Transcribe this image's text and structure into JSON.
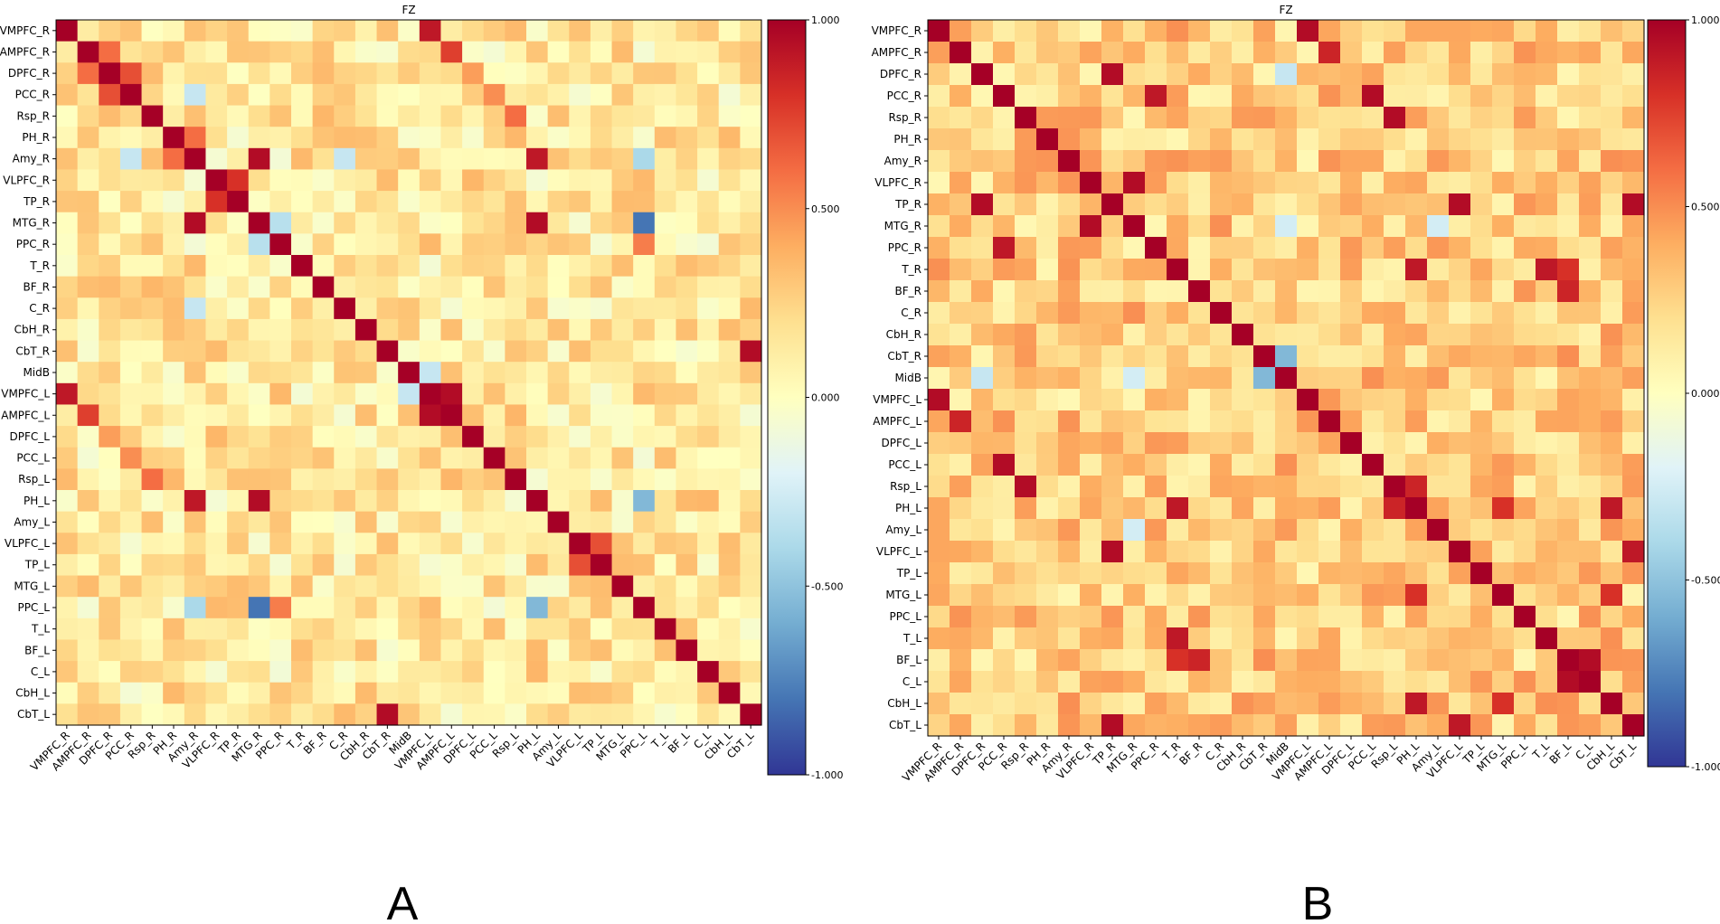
{
  "figure": {
    "panel_letters": [
      "A",
      "B"
    ]
  },
  "colormap": {
    "name": "RdYlBu_r",
    "stops": [
      "#313695",
      "#4575b4",
      "#74add1",
      "#abd9e9",
      "#e0f3f8",
      "#ffffbf",
      "#fee090",
      "#fdae61",
      "#f46d43",
      "#d73027",
      "#a50026"
    ]
  },
  "chart_data": [
    {
      "type": "heatmap",
      "panel": "A",
      "title": "FZ",
      "xlabel": "",
      "ylabel": "",
      "vmin": -1.0,
      "vmax": 1.0,
      "colorbar_ticks": [
        1.0,
        0.5,
        0.0,
        -0.5,
        -1.0
      ],
      "colorbar_tick_labels": [
        "1.000",
        "0.500",
        "0.000",
        "-0.500",
        "-1.000"
      ],
      "labels": [
        "VMPFC_R",
        "AMPFC_R",
        "DPFC_R",
        "PCC_R",
        "Rsp_R",
        "PH_R",
        "Amy_R",
        "VLPFC_R",
        "TP_R",
        "MTG_R",
        "PPC_R",
        "T_R",
        "BF_R",
        "C_R",
        "CbH_R",
        "CbT_R",
        "MidB",
        "VMPFC_L",
        "AMPFC_L",
        "DPFC_L",
        "PCC_L",
        "Rsp_L",
        "PH_L",
        "Amy_L",
        "VLPFC_L",
        "TP_L",
        "MTG_L",
        "PPC_L",
        "T_L",
        "BF_L",
        "C_L",
        "CbH_L",
        "CbT_L"
      ],
      "diagonal": 1.0,
      "base_level": 0.12,
      "notable_cells": [
        {
          "row": "VMPFC_R",
          "col": "VMPFC_L",
          "value": 0.9
        },
        {
          "row": "AMPFC_R",
          "col": "AMPFC_L",
          "value": 0.75
        },
        {
          "row": "AMPFC_R",
          "col": "DPFC_R",
          "value": 0.6
        },
        {
          "row": "DPFC_R",
          "col": "PCC_R",
          "value": 0.7
        },
        {
          "row": "DPFC_R",
          "col": "DPFC_L",
          "value": 0.45
        },
        {
          "row": "PCC_R",
          "col": "PCC_L",
          "value": 0.5
        },
        {
          "row": "Rsp_R",
          "col": "Rsp_L",
          "value": 0.6
        },
        {
          "row": "PH_R",
          "col": "Amy_R",
          "value": 0.6
        },
        {
          "row": "Amy_R",
          "col": "MTG_R",
          "value": 0.95
        },
        {
          "row": "Amy_R",
          "col": "PH_L",
          "value": 0.9
        },
        {
          "row": "MTG_R",
          "col": "PH_L",
          "value": 0.95
        },
        {
          "row": "VLPFC_R",
          "col": "TP_R",
          "value": 0.8
        },
        {
          "row": "PPC_R",
          "col": "PPC_L",
          "value": 0.55
        },
        {
          "row": "CbT_R",
          "col": "CbT_L",
          "value": 0.95
        },
        {
          "row": "VMPFC_L",
          "col": "AMPFC_L",
          "value": 0.95
        },
        {
          "row": "VLPFC_L",
          "col": "TP_L",
          "value": 0.7
        },
        {
          "row": "MTG_R",
          "col": "PPC_L",
          "value": -0.8
        },
        {
          "row": "Amy_R",
          "col": "PPC_L",
          "value": -0.4
        },
        {
          "row": "PH_L",
          "col": "PPC_L",
          "value": -0.55
        },
        {
          "row": "MTG_R",
          "col": "PPC_R",
          "value": -0.35
        },
        {
          "row": "Amy_R",
          "col": "PCC_R",
          "value": -0.3
        },
        {
          "row": "MidB",
          "col": "VMPFC_L",
          "value": -0.3
        },
        {
          "row": "Amy_R",
          "col": "C_R",
          "value": -0.3
        }
      ]
    },
    {
      "type": "heatmap",
      "panel": "B",
      "title": "FZ",
      "xlabel": "",
      "ylabel": "",
      "vmin": -1.0,
      "vmax": 1.0,
      "colorbar_ticks": [
        1.0,
        0.5,
        0.0,
        -0.5,
        -1.0
      ],
      "colorbar_tick_labels": [
        "1.000",
        "0.500",
        "0.000",
        "-0.500",
        "-1.000"
      ],
      "labels": [
        "VMPFC_R",
        "AMPFC_R",
        "DPFC_R",
        "PCC_R",
        "Rsp_R",
        "PH_R",
        "Amy_R",
        "VLPFC_R",
        "TP_R",
        "MTG_R",
        "PPC_R",
        "T_R",
        "BF_R",
        "C_R",
        "CbH_R",
        "CbT_R",
        "MidB",
        "VMPFC_L",
        "AMPFC_L",
        "DPFC_L",
        "PCC_L",
        "Rsp_L",
        "PH_L",
        "Amy_L",
        "VLPFC_L",
        "TP_L",
        "MTG_L",
        "PPC_L",
        "T_L",
        "BF_L",
        "C_L",
        "CbH_L",
        "CbT_L"
      ],
      "diagonal": 1.0,
      "base_level": 0.25,
      "notable_cells": [
        {
          "row": "VMPFC_R",
          "col": "VMPFC_L",
          "value": 0.95
        },
        {
          "row": "AMPFC_R",
          "col": "AMPFC_L",
          "value": 0.85
        },
        {
          "row": "DPFC_R",
          "col": "TP_R",
          "value": 0.95
        },
        {
          "row": "PCC_R",
          "col": "PPC_R",
          "value": 0.9
        },
        {
          "row": "PCC_R",
          "col": "PCC_L",
          "value": 0.95
        },
        {
          "row": "Rsp_R",
          "col": "Rsp_L",
          "value": 0.95
        },
        {
          "row": "VLPFC_R",
          "col": "MTG_R",
          "value": 0.95
        },
        {
          "row": "TP_R",
          "col": "VLPFC_L",
          "value": 0.95
        },
        {
          "row": "TP_R",
          "col": "CbT_L",
          "value": 0.95
        },
        {
          "row": "T_R",
          "col": "PH_L",
          "value": 0.9
        },
        {
          "row": "T_R",
          "col": "T_L",
          "value": 0.9
        },
        {
          "row": "T_R",
          "col": "BF_L",
          "value": 0.8
        },
        {
          "row": "BF_R",
          "col": "BF_L",
          "value": 0.85
        },
        {
          "row": "CbT_R",
          "col": "MidB",
          "value": -0.55
        },
        {
          "row": "Rsp_L",
          "col": "PH_L",
          "value": 0.85
        },
        {
          "row": "PH_L",
          "col": "MTG_L",
          "value": 0.8
        },
        {
          "row": "PH_L",
          "col": "CbH_L",
          "value": 0.9
        },
        {
          "row": "MTG_L",
          "col": "CbH_L",
          "value": 0.8
        },
        {
          "row": "BF_L",
          "col": "C_L",
          "value": 0.95
        },
        {
          "row": "VLPFC_L",
          "col": "CbT_L",
          "value": 0.9
        },
        {
          "row": "DPFC_R",
          "col": "MidB",
          "value": -0.3
        },
        {
          "row": "MTG_R",
          "col": "MidB",
          "value": -0.25
        },
        {
          "row": "Amy_L",
          "col": "MTG_R",
          "value": -0.25
        }
      ]
    }
  ]
}
